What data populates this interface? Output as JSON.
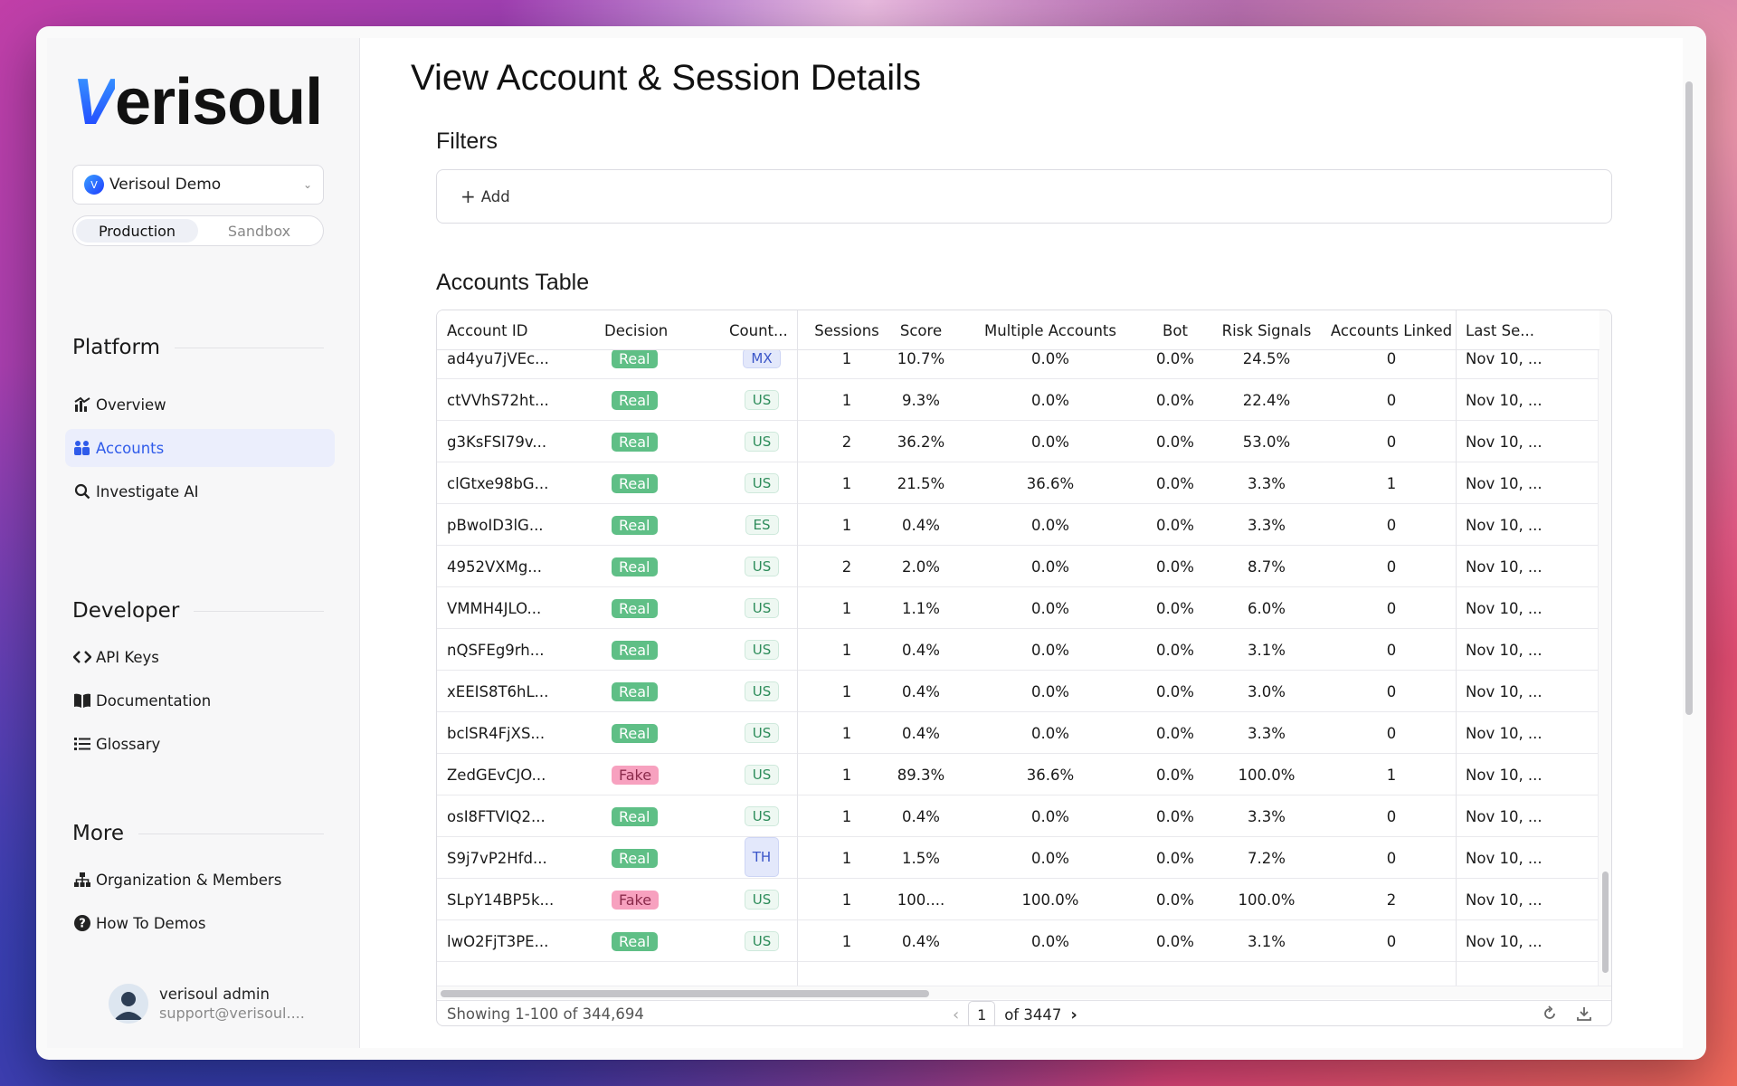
{
  "app": {
    "logo_v": "V",
    "logo_rest": "erisoul",
    "org_name": "Verisoul Demo",
    "org_initial": "V",
    "env_production": "Production",
    "env_sandbox": "Sandbox"
  },
  "sidebar": {
    "platform_title": "Platform",
    "developer_title": "Developer",
    "more_title": "More",
    "items": {
      "overview": "Overview",
      "accounts": "Accounts",
      "investigate": "Investigate AI",
      "api_keys": "API Keys",
      "documentation": "Documentation",
      "glossary": "Glossary",
      "org_members": "Organization & Members",
      "how_to": "How To Demos"
    },
    "user": {
      "name": "verisoul admin",
      "email": "support@verisoul...."
    }
  },
  "main": {
    "page_title": "View Account & Session Details",
    "filters_title": "Filters",
    "filters_add": "Add",
    "table_title": "Accounts Table",
    "columns": [
      "Account ID",
      "Decision",
      "Count...",
      "Sessions",
      "Score",
      "Multiple Accounts",
      "Bot",
      "Risk Signals",
      "Accounts Linked",
      "Last Se..."
    ],
    "rows": [
      [
        "ad4yu7jVEc...",
        "Real",
        "MX",
        "1",
        "10.7%",
        "0.0%",
        "0.0%",
        "24.5%",
        "0",
        "Nov 10, ..."
      ],
      [
        "ctVVhS72ht...",
        "Real",
        "US",
        "1",
        "9.3%",
        "0.0%",
        "0.0%",
        "22.4%",
        "0",
        "Nov 10, ..."
      ],
      [
        "g3KsFSI79v...",
        "Real",
        "US",
        "2",
        "36.2%",
        "0.0%",
        "0.0%",
        "53.0%",
        "0",
        "Nov 10, ..."
      ],
      [
        "clGtxe98bG...",
        "Real",
        "US",
        "1",
        "21.5%",
        "36.6%",
        "0.0%",
        "3.3%",
        "1",
        "Nov 10, ..."
      ],
      [
        "pBwoID3lG...",
        "Real",
        "ES",
        "1",
        "0.4%",
        "0.0%",
        "0.0%",
        "3.3%",
        "0",
        "Nov 10, ..."
      ],
      [
        "4952VXMg...",
        "Real",
        "US",
        "2",
        "2.0%",
        "0.0%",
        "0.0%",
        "8.7%",
        "0",
        "Nov 10, ..."
      ],
      [
        "VMMH4JLO...",
        "Real",
        "US",
        "1",
        "1.1%",
        "0.0%",
        "0.0%",
        "6.0%",
        "0",
        "Nov 10, ..."
      ],
      [
        "nQSFEg9rh...",
        "Real",
        "US",
        "1",
        "0.4%",
        "0.0%",
        "0.0%",
        "3.1%",
        "0",
        "Nov 10, ..."
      ],
      [
        "xEEIS8T6hL...",
        "Real",
        "US",
        "1",
        "0.4%",
        "0.0%",
        "0.0%",
        "3.0%",
        "0",
        "Nov 10, ..."
      ],
      [
        "bclSR4FjXS...",
        "Real",
        "US",
        "1",
        "0.4%",
        "0.0%",
        "0.0%",
        "3.3%",
        "0",
        "Nov 10, ..."
      ],
      [
        "ZedGEvCJO...",
        "Fake",
        "US",
        "1",
        "89.3%",
        "36.6%",
        "0.0%",
        "100.0%",
        "1",
        "Nov 10, ..."
      ],
      [
        "osI8FTVIQ2...",
        "Real",
        "US",
        "1",
        "0.4%",
        "0.0%",
        "0.0%",
        "3.3%",
        "0",
        "Nov 10, ..."
      ],
      [
        "S9j7vP2Hfd...",
        "Real",
        "TH",
        "1",
        "1.5%",
        "0.0%",
        "0.0%",
        "7.2%",
        "0",
        "Nov 10, ..."
      ],
      [
        "SLpY14BP5k...",
        "Fake",
        "US",
        "1",
        "100....",
        "100.0%",
        "0.0%",
        "100.0%",
        "2",
        "Nov 10, ..."
      ],
      [
        "lwO2FjT3PE...",
        "Real",
        "US",
        "1",
        "0.4%",
        "0.0%",
        "0.0%",
        "3.1%",
        "0",
        "Nov 10, ..."
      ]
    ],
    "footer": {
      "showing": "Showing 1-100 of 344,694",
      "page": "1",
      "of_pages": "of 3447"
    }
  },
  "colors": {
    "accent": "#2f5bea",
    "real_badge": "#5fbf86",
    "fake_badge": "#f7a1bf"
  }
}
